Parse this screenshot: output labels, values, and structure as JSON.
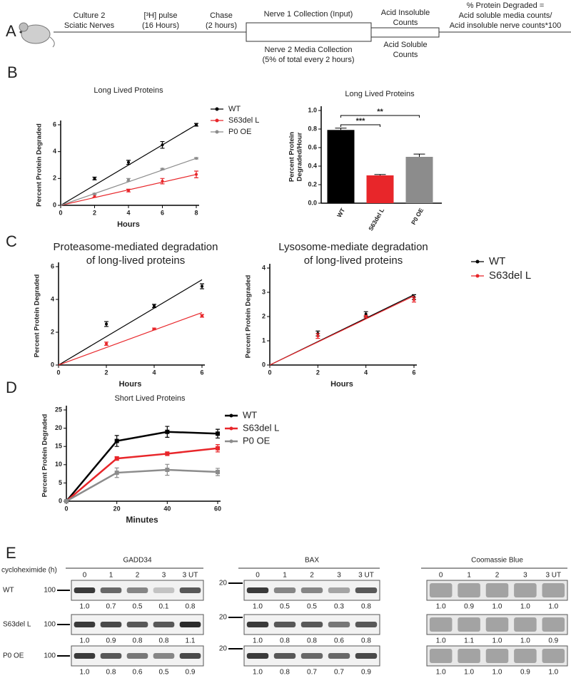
{
  "panel_labels": [
    "A",
    "B",
    "C",
    "D",
    "E"
  ],
  "panel_a": {
    "steps": [
      [
        "Culture 2",
        "Sciatic Nerves"
      ],
      [
        "[³H] pulse",
        "(16 Hours)"
      ],
      [
        "Chase",
        "(2 hours)"
      ],
      [
        "Nerve 1 Collection (Input)"
      ],
      [
        "Nerve 2 Media Collection",
        "(5% of total every 2 hours)"
      ],
      [
        "Acid Insoluble",
        "Counts"
      ],
      [
        "Acid Soluble",
        "Counts"
      ],
      [
        "% Protein Degraded =",
        "Acid soluble media counts/",
        "Acid insoluble nerve counts*100"
      ]
    ]
  },
  "chart_data": [
    {
      "type": "scatter",
      "title": "Long Lived Proteins",
      "x_label": "Hours",
      "y_label": "Percent Protein Degraded",
      "xlim": [
        0,
        8
      ],
      "xticks": [
        0,
        2,
        4,
        6,
        8
      ],
      "ylim": [
        0,
        6
      ],
      "yticks": [
        0,
        2,
        4,
        6
      ],
      "legend": "right",
      "series": [
        {
          "name": "WT",
          "color": "#000000",
          "x": [
            2,
            4,
            6,
            8
          ],
          "values": [
            2.0,
            3.2,
            4.5,
            6.0
          ],
          "errors": [
            0.1,
            0.15,
            0.25,
            0.1
          ],
          "fit": {
            "x": [
              0,
              8
            ],
            "values": [
              0,
              6.0
            ]
          }
        },
        {
          "name": "S63del L",
          "color": "#e8262a",
          "x": [
            2,
            4,
            6,
            8
          ],
          "values": [
            0.7,
            1.1,
            1.8,
            2.3
          ],
          "errors": [
            0.1,
            0.1,
            0.2,
            0.25
          ],
          "fit": {
            "x": [
              0,
              8
            ],
            "values": [
              0,
              2.3
            ]
          }
        },
        {
          "name": "P0 OE",
          "color": "#8c8c8c",
          "x": [
            2,
            4,
            6,
            8
          ],
          "values": [
            0.85,
            1.9,
            2.7,
            3.5
          ],
          "errors": [
            0.05,
            0.1,
            0.05,
            0.05
          ],
          "fit": {
            "x": [
              0,
              8
            ],
            "values": [
              0,
              3.5
            ]
          }
        }
      ]
    },
    {
      "type": "bar",
      "title": "Long Lived Proteins",
      "y_label": [
        "Percent  Protein",
        "Degraded/Hour"
      ],
      "categories": [
        "WT",
        "S63del L",
        "P0 OE"
      ],
      "values": [
        0.79,
        0.3,
        0.5
      ],
      "errors": [
        0.02,
        0.01,
        0.03
      ],
      "colors": [
        "#000000",
        "#e8262a",
        "#8c8c8c"
      ],
      "annotations": [
        "***",
        "**"
      ],
      "ylim": [
        0,
        1.0
      ],
      "yticks": [
        {
          "value": 0,
          "label": "0.0"
        },
        {
          "value": 0.2,
          "label": "0.2"
        },
        {
          "value": 0.4,
          "label": "0.4"
        },
        {
          "value": 0.6,
          "label": "0.6"
        },
        {
          "value": 0.8,
          "label": "0.8"
        },
        {
          "value": 1.0,
          "label": "1.0"
        }
      ]
    },
    {
      "type": "scatter",
      "title": [
        "Proteasome-mediated degradation",
        "of long-lived proteins"
      ],
      "x_label": "Hours",
      "y_label": "Percent Protein Degraded",
      "xlim": [
        0,
        6
      ],
      "xticks": [
        0,
        2,
        4,
        6
      ],
      "ylim": [
        0,
        6
      ],
      "yticks": [
        0,
        2,
        4,
        6
      ],
      "series": [
        {
          "name": "WT",
          "color": "#000000",
          "x": [
            2,
            4,
            6
          ],
          "values": [
            2.5,
            3.6,
            4.8
          ],
          "errors": [
            0.15,
            0.1,
            0.15
          ],
          "fit": {
            "x": [
              0,
              6
            ],
            "values": [
              0,
              5.2
            ]
          }
        },
        {
          "name": "S63del L",
          "color": "#e8262a",
          "x": [
            2,
            4,
            6
          ],
          "values": [
            1.3,
            2.2,
            3.0
          ],
          "errors": [
            0.1,
            0.05,
            0.08
          ],
          "fit": {
            "x": [
              0,
              6
            ],
            "values": [
              0,
              3.2
            ]
          }
        }
      ]
    },
    {
      "type": "scatter",
      "title": [
        "Lysosome-mediate degradation",
        "of long-lived proteins"
      ],
      "x_label": "Hours",
      "y_label": "Percent Protein Degraded",
      "xlim": [
        0,
        6
      ],
      "xticks": [
        0,
        2,
        4,
        6
      ],
      "ylim": [
        0,
        4
      ],
      "yticks": [
        0,
        1,
        2,
        3,
        4
      ],
      "legend": "right",
      "series": [
        {
          "name": "WT",
          "color": "#000000",
          "x": [
            2,
            4,
            6
          ],
          "values": [
            1.3,
            2.1,
            2.8
          ],
          "errors": [
            0.1,
            0.1,
            0.1
          ],
          "fit": {
            "x": [
              0,
              6
            ],
            "values": [
              0,
              2.9
            ]
          }
        },
        {
          "name": "S63del L",
          "color": "#e8262a",
          "x": [
            2,
            4,
            6
          ],
          "values": [
            1.2,
            2.0,
            2.7
          ],
          "errors": [
            0.1,
            0.05,
            0.1
          ],
          "fit": {
            "x": [
              0,
              6
            ],
            "values": [
              0,
              2.85
            ]
          }
        }
      ]
    },
    {
      "type": "line",
      "title": "Short Lived Proteins",
      "x_label": "Minutes",
      "y_label": "Percent Protein Degraded",
      "xlim": [
        0,
        60
      ],
      "xticks": [
        0,
        20,
        40,
        60
      ],
      "ylim": [
        0,
        25
      ],
      "yticks": [
        0,
        5,
        10,
        15,
        20,
        25
      ],
      "legend": "right",
      "series": [
        {
          "name": "WT",
          "color": "#000000",
          "x": [
            0,
            20,
            40,
            60
          ],
          "values": [
            0,
            16.5,
            19,
            18.5
          ],
          "errors": [
            0,
            1.5,
            1.5,
            1.2
          ]
        },
        {
          "name": "S63del L",
          "color": "#e8262a",
          "x": [
            0,
            20,
            40,
            60
          ],
          "values": [
            0,
            11.7,
            13,
            14.5
          ],
          "errors": [
            0,
            0.5,
            0.5,
            1
          ]
        },
        {
          "name": "P0 OE",
          "color": "#8c8c8c",
          "x": [
            0,
            20,
            40,
            60
          ],
          "values": [
            0,
            7.8,
            8.6,
            8
          ],
          "errors": [
            0,
            1.3,
            1.5,
            1
          ]
        }
      ]
    }
  ],
  "panel_e": {
    "treatment_label": "cycloheximide (h)",
    "lanes": [
      "0",
      "1",
      "2",
      "3",
      "3 UT"
    ],
    "rows": [
      "WT",
      "S63del L",
      "P0 OE"
    ],
    "blots": [
      {
        "title": "GADD34",
        "marker": "100",
        "quantification": [
          [
            "1.0",
            "0.7",
            "0.5",
            "0.1",
            "0.8"
          ],
          [
            "1.0",
            "0.9",
            "0.8",
            "0.8",
            "1.1"
          ],
          [
            "1.0",
            "0.8",
            "0.6",
            "0.5",
            "0.9"
          ]
        ]
      },
      {
        "title": "BAX",
        "marker": "20",
        "quantification": [
          [
            "1.0",
            "0.5",
            "0.5",
            "0.3",
            "0.8"
          ],
          [
            "1.0",
            "0.8",
            "0.8",
            "0.6",
            "0.8"
          ],
          [
            "1.0",
            "0.8",
            "0.7",
            "0.7",
            "0.9"
          ]
        ]
      },
      {
        "title": "Coomassie Blue",
        "quantification": [
          [
            "1.0",
            "0.9",
            "1.0",
            "1.0",
            "1.0"
          ],
          [
            "1.0",
            "1.1",
            "1.0",
            "1.0",
            "0.9"
          ],
          [
            "1.0",
            "1.0",
            "1.0",
            "0.9",
            "1.0"
          ]
        ]
      }
    ]
  }
}
